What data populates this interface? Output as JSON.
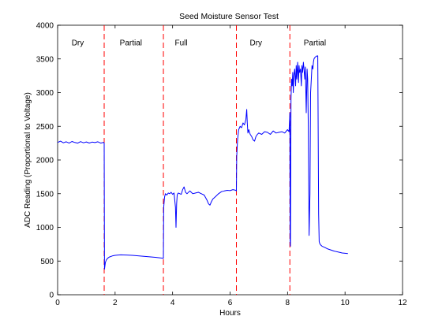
{
  "chart_data": {
    "type": "line",
    "title": "Seed Moisture Sensor Test",
    "xlabel": "Hours",
    "ylabel": "ADC Reading (Proportional to Voltage)",
    "xlim": [
      0,
      12
    ],
    "ylim": [
      0,
      4000
    ],
    "xticks": [
      0,
      2,
      4,
      6,
      8,
      10,
      12
    ],
    "yticks": [
      0,
      500,
      1000,
      1500,
      2000,
      2500,
      3000,
      3500,
      4000
    ],
    "grid": false,
    "line_color": "#0000ff",
    "divider_color": "#ff0000",
    "dividers_x": [
      1.62,
      3.68,
      6.22,
      8.08
    ],
    "phase_labels": [
      {
        "x": 0.7,
        "text": "Dry"
      },
      {
        "x": 2.55,
        "text": "Partial"
      },
      {
        "x": 4.3,
        "text": "Full"
      },
      {
        "x": 6.9,
        "text": "Dry"
      },
      {
        "x": 8.95,
        "text": "Partial"
      }
    ],
    "phase_label_y": 3700,
    "series": [
      {
        "x": [
          0,
          0.1,
          0.2,
          0.3,
          0.4,
          0.5,
          0.6,
          0.7,
          0.8,
          0.9,
          1.0,
          1.1,
          1.2,
          1.3,
          1.4,
          1.5,
          1.6,
          1.62,
          1.63,
          1.66,
          1.7,
          1.75,
          1.8,
          1.9,
          2.0,
          2.1,
          2.2,
          2.4,
          2.6,
          2.8,
          3.0,
          3.2,
          3.4,
          3.6,
          3.68,
          3.69,
          3.72,
          3.75,
          3.8,
          3.85,
          3.9,
          3.95,
          4.0,
          4.05,
          4.1,
          4.12,
          4.14,
          4.16,
          4.18,
          4.2,
          4.25,
          4.3,
          4.35,
          4.4,
          4.45,
          4.5,
          4.6,
          4.7,
          4.8,
          4.9,
          5.0,
          5.1,
          5.2,
          5.25,
          5.3,
          5.35,
          5.4,
          5.5,
          5.6,
          5.7,
          5.8,
          5.9,
          6.0,
          6.1,
          6.2,
          6.22,
          6.23,
          6.26,
          6.3,
          6.35,
          6.4,
          6.45,
          6.5,
          6.55,
          6.58,
          6.6,
          6.62,
          6.65,
          6.7,
          6.75,
          6.8,
          6.85,
          6.9,
          6.95,
          7.0,
          7.1,
          7.2,
          7.3,
          7.4,
          7.5,
          7.6,
          7.7,
          7.8,
          7.9,
          8.0,
          8.05,
          8.08,
          8.09,
          8.1,
          8.12,
          8.14,
          8.16,
          8.18,
          8.2,
          8.22,
          8.25,
          8.28,
          8.3,
          8.32,
          8.35,
          8.38,
          8.4,
          8.42,
          8.45,
          8.48,
          8.5,
          8.52,
          8.55,
          8.6,
          8.62,
          8.65,
          8.68,
          8.7,
          8.72,
          8.75,
          8.78,
          8.8,
          8.82,
          8.85,
          8.88,
          8.9,
          8.92,
          8.95,
          9.0,
          9.05,
          9.08,
          9.1,
          9.12,
          9.15,
          9.2,
          9.3,
          9.4,
          9.5,
          9.6,
          9.7,
          9.8,
          9.9,
          10.0,
          10.1
        ],
        "y": [
          2260,
          2280,
          2255,
          2270,
          2250,
          2275,
          2260,
          2250,
          2272,
          2255,
          2268,
          2252,
          2265,
          2258,
          2270,
          2250,
          2262,
          2250,
          380,
          480,
          520,
          545,
          560,
          575,
          585,
          590,
          592,
          590,
          585,
          578,
          570,
          562,
          555,
          545,
          540,
          1300,
          1450,
          1500,
          1480,
          1510,
          1500,
          1520,
          1490,
          1510,
          1300,
          1000,
          1350,
          1480,
          1500,
          1510,
          1500,
          1490,
          1560,
          1600,
          1520,
          1500,
          1540,
          1500,
          1510,
          1520,
          1500,
          1480,
          1400,
          1350,
          1330,
          1380,
          1420,
          1460,
          1500,
          1530,
          1540,
          1550,
          1545,
          1560,
          1550,
          1540,
          2050,
          2300,
          2450,
          2500,
          2480,
          2550,
          2520,
          2600,
          2750,
          2550,
          2400,
          2450,
          2380,
          2350,
          2300,
          2280,
          2350,
          2380,
          2400,
          2380,
          2420,
          2410,
          2380,
          2430,
          2400,
          2410,
          2420,
          2400,
          2450,
          2420,
          2700,
          800,
          720,
          2900,
          3200,
          3100,
          3300,
          3000,
          3250,
          3350,
          3100,
          3400,
          3200,
          3450,
          3150,
          3400,
          3300,
          3350,
          3100,
          3400,
          3300,
          3450,
          3200,
          3380,
          2700,
          3350,
          3200,
          2500,
          880,
          1500,
          3000,
          3150,
          3400,
          3350,
          3450,
          3500,
          3520,
          3540,
          3545,
          1200,
          790,
          760,
          740,
          720,
          700,
          680,
          665,
          650,
          640,
          630,
          620,
          615,
          610
        ]
      }
    ]
  }
}
